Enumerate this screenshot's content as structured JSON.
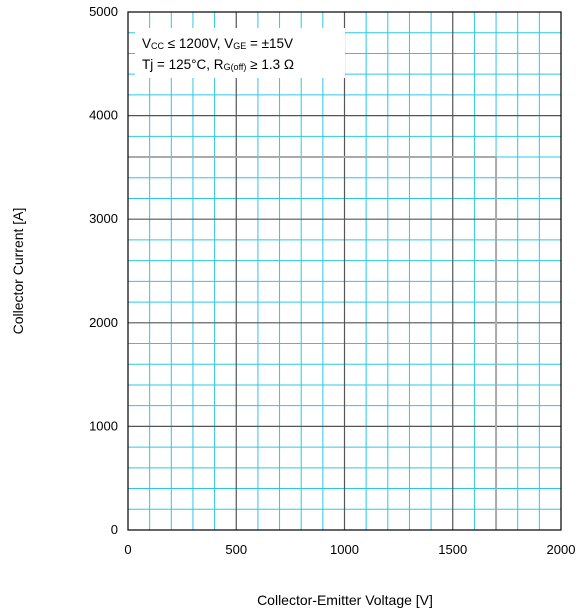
{
  "chart_data": {
    "type": "line",
    "title": "",
    "xlabel": "Collector-Emitter Voltage [V]",
    "ylabel": "Collector Current [A]",
    "xlim": [
      0,
      2000
    ],
    "ylim": [
      0,
      5000
    ],
    "x_ticks": [
      0,
      500,
      1000,
      1500,
      2000
    ],
    "y_ticks": [
      0,
      1000,
      2000,
      3000,
      4000,
      5000
    ],
    "x_tick_labels": [
      "0",
      "500",
      "1000",
      "1500",
      "2000"
    ],
    "y_tick_labels": [
      "0",
      "1000",
      "2000",
      "3000",
      "4000",
      "5000"
    ],
    "grid": true,
    "minor_grid_x_step": 100,
    "minor_grid_y_step": 200,
    "series": [
      {
        "x": [
          0,
          1700,
          1700
        ],
        "y": [
          3600,
          3600,
          0
        ]
      }
    ],
    "annotation": {
      "line1": {
        "v": "V",
        "cc": "CC",
        "le": " ≤ 1200V, V",
        "ge": "GE",
        "rest": " = ±15V"
      },
      "line2": {
        "tj": "Tj = 125°C, R",
        "goff": "G(off)",
        "rest": " ≥ 1.3 Ω"
      }
    },
    "colors": {
      "minor_grid": "#2dc7e6",
      "major_grid": "#555555",
      "frame": "#000000",
      "curve": "#aaaaaa",
      "annotation_bg": "#ffffff"
    }
  }
}
